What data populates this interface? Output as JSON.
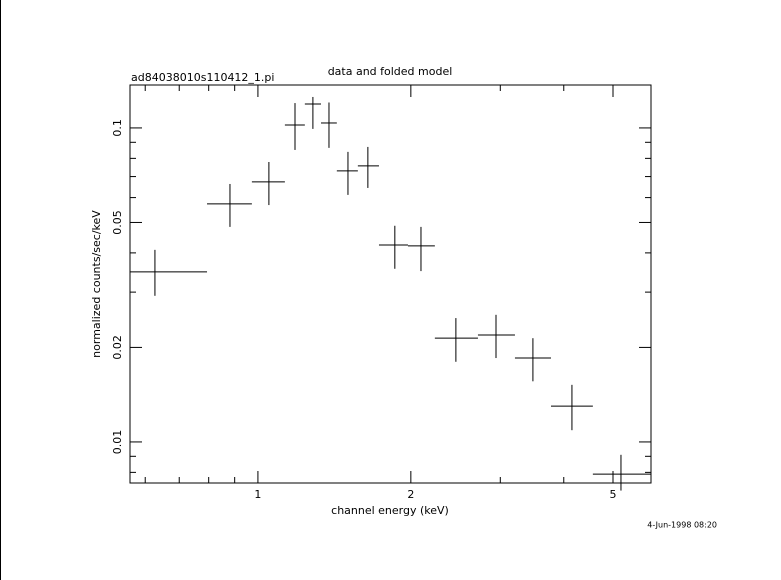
{
  "chart_data": {
    "type": "errorbar",
    "title": "data and folded model",
    "subtitle": "ad84038010s110412_1.pi",
    "x_label": "channel energy (keV)",
    "y_label": "normalized counts/sec/keV",
    "timestamp": "4-Jun-1998 08:20",
    "log_x": true,
    "log_y": true,
    "color": "#000000",
    "xlim": [
      0.56,
      5.94
    ],
    "ylim": [
      0.0074,
      0.137
    ],
    "xticks": [
      1,
      2,
      5
    ],
    "yticks": [
      0.01,
      0.02,
      0.05,
      0.1
    ],
    "xminor_ticks": [
      0.6,
      0.7,
      0.8,
      0.9,
      3,
      4
    ],
    "yminor_ticks": [
      0.008,
      0.009,
      0.03,
      0.04,
      0.06,
      0.07,
      0.08,
      0.09
    ],
    "x": [
      0.627,
      0.881,
      1.051,
      1.183,
      1.283,
      1.38,
      1.504,
      1.646,
      1.86,
      2.094,
      2.453,
      2.942,
      3.478,
      4.151,
      5.184
    ],
    "x_low": [
      0.56,
      0.794,
      0.973,
      1.13,
      1.237,
      1.331,
      1.43,
      1.573,
      1.731,
      1.974,
      2.23,
      2.711,
      3.206,
      3.775,
      4.564
    ],
    "x_high": [
      0.794,
      0.973,
      1.13,
      1.237,
      1.331,
      1.43,
      1.573,
      1.731,
      1.974,
      2.23,
      2.711,
      3.206,
      3.775,
      4.564,
      5.94
    ],
    "values": [
      0.0348,
      0.0573,
      0.0673,
      0.1022,
      0.1192,
      0.1037,
      0.073,
      0.0757,
      0.0424,
      0.0421,
      0.0214,
      0.0219,
      0.0185,
      0.013,
      0.0079
    ],
    "y_low": [
      0.0292,
      0.0484,
      0.0568,
      0.0851,
      0.0993,
      0.0864,
      0.0612,
      0.0644,
      0.0356,
      0.035,
      0.018,
      0.0185,
      0.0156,
      0.0109,
      0.007
    ],
    "y_high": [
      0.0409,
      0.0663,
      0.0779,
      0.12,
      0.1255,
      0.1205,
      0.0839,
      0.087,
      0.0488,
      0.0484,
      0.0248,
      0.0254,
      0.0214,
      0.0152,
      0.0091
    ]
  }
}
